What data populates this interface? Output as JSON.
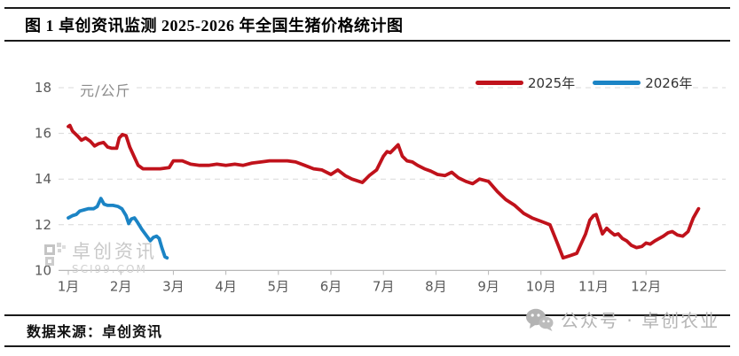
{
  "header": {
    "title": "图 1 卓创资讯监测 2025-2026 年全国生猪价格统计图"
  },
  "footer": {
    "source_label": "数据来源：卓创资讯",
    "watermark": "公众号 · 卓创农业"
  },
  "chart_watermark": {
    "brand": "卓创资讯",
    "site": "SCI99.COM"
  },
  "chart_data": {
    "type": "line",
    "title": "图 1 卓创资讯监测 2025-2026 年全国生猪价格统计图",
    "unit_label": "元/公斤",
    "ylabel": "元/公斤",
    "xlabel": "",
    "ylim": [
      10,
      18
    ],
    "y_ticks": [
      18,
      16,
      14,
      12,
      10
    ],
    "x_ticks": [
      "1月",
      "2月",
      "3月",
      "4月",
      "5月",
      "6月",
      "7月",
      "8月",
      "9月",
      "10月",
      "11月",
      "12月"
    ],
    "x_unit": "month, 1.0 = Jan 1 and 13.0 = Dec 31",
    "grid": "horizontal dashed",
    "legend_position": "top-right",
    "series": [
      {
        "name": "2025年",
        "color": "#c0121b",
        "x": [
          1.0,
          1.03,
          1.08,
          1.17,
          1.25,
          1.33,
          1.42,
          1.5,
          1.58,
          1.67,
          1.75,
          1.83,
          1.92,
          1.97,
          2.03,
          2.1,
          2.17,
          2.25,
          2.33,
          2.42,
          2.58,
          2.75,
          2.92,
          3.0,
          3.17,
          3.33,
          3.5,
          3.67,
          3.83,
          4.0,
          4.17,
          4.33,
          4.5,
          4.67,
          4.83,
          5.0,
          5.17,
          5.33,
          5.5,
          5.67,
          5.83,
          6.0,
          6.13,
          6.27,
          6.4,
          6.6,
          6.73,
          6.87,
          7.0,
          7.07,
          7.13,
          7.28,
          7.36,
          7.45,
          7.55,
          7.65,
          7.78,
          7.9,
          8.03,
          8.17,
          8.3,
          8.43,
          8.57,
          8.7,
          8.83,
          9.0,
          9.17,
          9.33,
          9.5,
          9.67,
          9.83,
          10.0,
          10.17,
          10.31,
          10.42,
          10.56,
          10.68,
          10.85,
          10.93,
          11.0,
          11.05,
          11.12,
          11.17,
          11.25,
          11.32,
          11.4,
          11.47,
          11.55,
          11.63,
          11.72,
          11.82,
          11.92,
          12.0,
          12.08,
          12.17,
          12.25,
          12.33,
          12.42,
          12.5,
          12.6,
          12.7,
          12.8,
          12.85,
          12.9,
          12.95,
          13.0
        ],
        "values": [
          16.3,
          16.35,
          16.1,
          15.9,
          15.7,
          15.8,
          15.65,
          15.45,
          15.55,
          15.6,
          15.4,
          15.35,
          15.35,
          15.8,
          15.95,
          15.9,
          15.4,
          15.0,
          14.6,
          14.45,
          14.45,
          14.45,
          14.5,
          14.8,
          14.8,
          14.65,
          14.6,
          14.6,
          14.65,
          14.6,
          14.65,
          14.6,
          14.7,
          14.75,
          14.8,
          14.8,
          14.8,
          14.75,
          14.6,
          14.45,
          14.4,
          14.2,
          14.4,
          14.15,
          14.0,
          13.85,
          14.15,
          14.4,
          15.0,
          15.2,
          15.15,
          15.5,
          15.0,
          14.8,
          14.75,
          14.6,
          14.45,
          14.35,
          14.2,
          14.15,
          14.3,
          14.05,
          13.9,
          13.8,
          14.0,
          13.9,
          13.45,
          13.1,
          12.85,
          12.5,
          12.3,
          12.15,
          12.0,
          11.2,
          10.55,
          10.65,
          10.75,
          11.6,
          12.2,
          12.4,
          12.45,
          11.95,
          11.6,
          11.85,
          11.7,
          11.55,
          11.6,
          11.4,
          11.3,
          11.1,
          11.0,
          11.05,
          11.2,
          11.15,
          11.3,
          11.4,
          11.5,
          11.65,
          11.7,
          11.55,
          11.5,
          11.7,
          12.0,
          12.3,
          12.5,
          12.7
        ]
      },
      {
        "name": "2026年",
        "color": "#1b84c5",
        "x": [
          1.0,
          1.08,
          1.15,
          1.22,
          1.3,
          1.38,
          1.48,
          1.55,
          1.62,
          1.68,
          1.75,
          1.85,
          1.95,
          2.02,
          2.1,
          2.15,
          2.2,
          2.26,
          2.32,
          2.4,
          2.48,
          2.56,
          2.62,
          2.68,
          2.73,
          2.78,
          2.84,
          2.88
        ],
        "values": [
          12.3,
          12.4,
          12.45,
          12.6,
          12.65,
          12.7,
          12.7,
          12.8,
          13.15,
          12.9,
          12.85,
          12.85,
          12.8,
          12.7,
          12.4,
          12.05,
          12.25,
          12.3,
          12.1,
          11.8,
          11.55,
          11.3,
          11.45,
          11.5,
          11.4,
          11.0,
          10.6,
          10.55
        ]
      }
    ]
  }
}
